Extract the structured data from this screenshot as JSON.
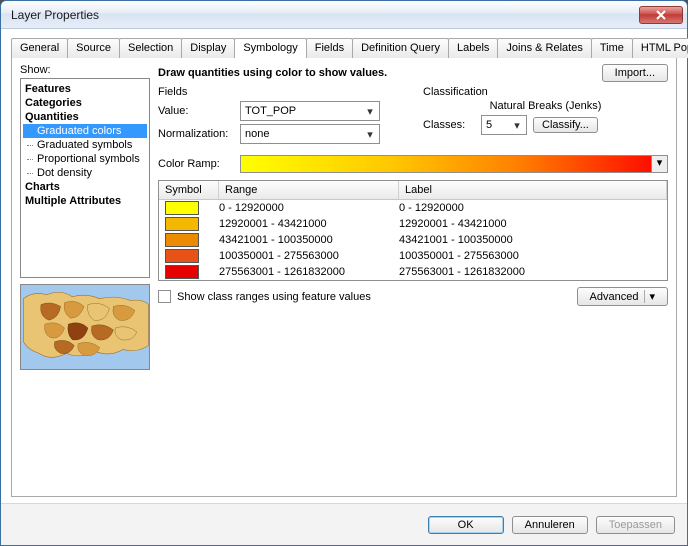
{
  "window_title": "Layer Properties",
  "tabs": [
    "General",
    "Source",
    "Selection",
    "Display",
    "Symbology",
    "Fields",
    "Definition Query",
    "Labels",
    "Joins & Relates",
    "Time",
    "HTML Popup"
  ],
  "active_tab": 4,
  "show_label": "Show:",
  "tree": {
    "categories": [
      "Features",
      "Categories"
    ],
    "quantities": {
      "label": "Quantities",
      "items": [
        "Graduated colors",
        "Graduated symbols",
        "Proportional symbols",
        "Dot density"
      ],
      "selected": 0
    },
    "trailing": [
      "Charts",
      "Multiple Attributes"
    ]
  },
  "heading": "Draw quantities using color to show values.",
  "import_btn": "Import...",
  "fields_section": {
    "legend": "Fields",
    "value_label": "Value:",
    "value": "TOT_POP",
    "norm_label": "Normalization:",
    "norm": "none"
  },
  "class_section": {
    "legend": "Classification",
    "method": "Natural Breaks (Jenks)",
    "classes_label": "Classes:",
    "classes": "5",
    "classify_btn": "Classify..."
  },
  "color_ramp_label": "Color Ramp:",
  "grid": {
    "headers": [
      "Symbol",
      "Range",
      "Label"
    ],
    "rows": [
      {
        "color": "#ffff00",
        "range": "0 - 12920000",
        "label": "0 - 12920000"
      },
      {
        "color": "#f5b800",
        "range": "12920001 - 43421000",
        "label": "12920001 - 43421000"
      },
      {
        "color": "#ec8a00",
        "range": "43421001 - 100350000",
        "label": "43421001 - 100350000"
      },
      {
        "color": "#e65217",
        "range": "100350001 - 275563000",
        "label": "100350001 - 275563000"
      },
      {
        "color": "#e60000",
        "range": "275563001 - 1261832000",
        "label": "275563001 - 1261832000"
      }
    ]
  },
  "show_ranges_checkbox": "Show class ranges using feature values",
  "advanced_btn": "Advanced",
  "footer": {
    "ok": "OK",
    "cancel": "Annuleren",
    "apply": "Toepassen"
  },
  "preview_colors": {
    "ocean": "#a3c8ee",
    "land": [
      "#e8c473",
      "#d89a3e",
      "#b76a23",
      "#8f4112",
      "#e8c473",
      "#d89a3e",
      "#b76a23",
      "#e8c473"
    ]
  }
}
